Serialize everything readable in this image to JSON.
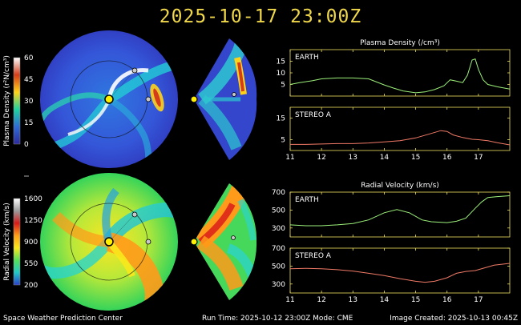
{
  "title": "2025-10-17 23:00Z",
  "footer": {
    "left": "Space Weather Prediction Center",
    "center": "Run Time: 2025-10-12 23:00Z   Mode: CME",
    "right": "Image Created: 2025-10-13 00:45Z"
  },
  "colors": {
    "title": "#f0d84a",
    "earth_line": "#9cf07a",
    "stereo_line": "#f07a66",
    "frame": "#f0e060"
  },
  "colorbars": [
    {
      "label": "Plasma Density (r²N/cm³)",
      "ticks": [
        "60",
        "45",
        "30",
        "15",
        "0"
      ],
      "colors": [
        "#ffffff",
        "#d43d1a",
        "#ffd21a",
        "#1fd2a0",
        "#2f6bd6",
        "#2d2a9c"
      ]
    },
    {
      "label": "Radial Velocity (km/s)",
      "ticks": [
        "1600",
        "1250",
        "900",
        "550",
        "200"
      ],
      "colors": [
        "#ffffff",
        "#9a9a9a",
        "#d61b1b",
        "#ff9f1a",
        "#f8e81c",
        "#55e05a",
        "#22c8c8",
        "#2a3fc8"
      ]
    }
  ],
  "chart_data": [
    {
      "type": "line",
      "title": "Plasma Density (/cm³)",
      "xlabel": "",
      "xlim": [
        11,
        18
      ],
      "xticks": [
        11,
        12,
        13,
        14,
        15,
        16,
        17
      ],
      "panels": [
        {
          "label": "EARTH",
          "ylim": [
            0,
            20
          ],
          "yticks": [
            5,
            10,
            15
          ],
          "x": [
            11,
            11.3,
            11.7,
            12.0,
            12.5,
            13.0,
            13.5,
            14.0,
            14.3,
            14.6,
            15.0,
            15.3,
            15.6,
            15.9,
            16.1,
            16.3,
            16.5,
            16.65,
            16.8,
            16.9,
            17.0,
            17.15,
            17.3,
            17.6,
            18.0
          ],
          "y": [
            5.0,
            5.8,
            6.6,
            7.4,
            7.8,
            7.8,
            7.4,
            4.8,
            3.4,
            2.2,
            1.4,
            1.8,
            2.8,
            4.4,
            7.0,
            6.4,
            5.8,
            9.0,
            15.5,
            16.0,
            11.5,
            7.0,
            5.0,
            4.0,
            3.0
          ]
        },
        {
          "label": "STEREO A",
          "ylim": [
            0,
            20
          ],
          "yticks": [
            5,
            15
          ],
          "x": [
            11,
            11.5,
            12,
            12.5,
            13,
            13.5,
            14,
            14.5,
            15,
            15.4,
            15.8,
            16.0,
            16.2,
            16.5,
            16.8,
            17.0,
            17.3,
            17.6,
            18.0
          ],
          "y": [
            2.8,
            2.8,
            3.0,
            3.2,
            3.2,
            3.5,
            4.0,
            4.5,
            5.8,
            7.5,
            9.2,
            8.8,
            7.2,
            6.0,
            5.2,
            5.0,
            4.5,
            3.6,
            2.6
          ]
        }
      ]
    },
    {
      "type": "line",
      "title": "Radial Velocity (km/s)",
      "xlabel": "",
      "xlim": [
        11,
        18
      ],
      "xticks": [
        11,
        12,
        13,
        14,
        15,
        16,
        17
      ],
      "panels": [
        {
          "label": "EARTH",
          "ylim": [
            200,
            700
          ],
          "yticks": [
            300,
            500,
            700
          ],
          "x": [
            11,
            11.5,
            12,
            12.5,
            13,
            13.5,
            14.0,
            14.4,
            14.8,
            15.2,
            15.5,
            16.0,
            16.3,
            16.6,
            16.9,
            17.1,
            17.3,
            17.6,
            18.0
          ],
          "y": [
            335,
            325,
            325,
            335,
            350,
            390,
            470,
            505,
            470,
            390,
            370,
            360,
            375,
            410,
            520,
            590,
            640,
            650,
            660
          ]
        },
        {
          "label": "STEREO A",
          "ylim": [
            200,
            700
          ],
          "yticks": [
            300,
            500,
            700
          ],
          "x": [
            11,
            11.5,
            12,
            12.5,
            13,
            13.5,
            14,
            14.5,
            15,
            15.3,
            15.6,
            16.0,
            16.3,
            16.6,
            16.9,
            17.2,
            17.5,
            18.0
          ],
          "y": [
            470,
            475,
            470,
            460,
            445,
            420,
            395,
            360,
            330,
            320,
            330,
            370,
            420,
            440,
            450,
            480,
            510,
            530
          ]
        }
      ]
    }
  ]
}
